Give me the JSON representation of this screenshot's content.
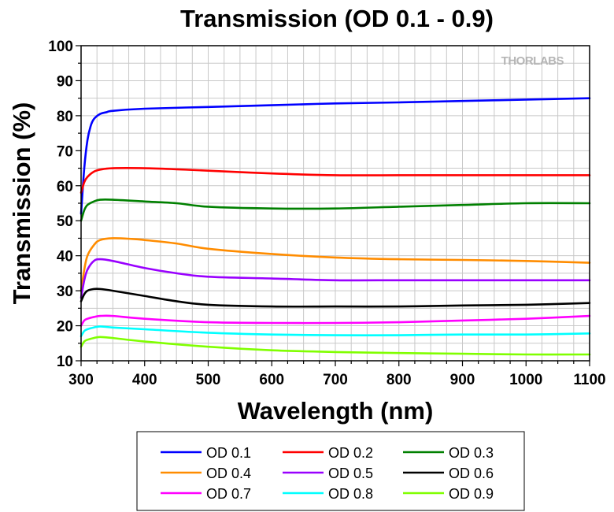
{
  "chart_data": {
    "type": "line",
    "title": "Transmission (OD 0.1 - 0.9)",
    "xlabel": "Wavelength (nm)",
    "ylabel": "Transmission (%)",
    "xlim": [
      300,
      1100
    ],
    "ylim": [
      10,
      100
    ],
    "x_ticks": [
      300,
      400,
      500,
      600,
      700,
      800,
      900,
      1000,
      1100
    ],
    "y_ticks": [
      10,
      20,
      30,
      40,
      50,
      60,
      70,
      80,
      90,
      100
    ],
    "grid": true,
    "legend_position": "bottom",
    "watermark": "THORLABS",
    "series": [
      {
        "name": "OD 0.1",
        "color": "#0000ff",
        "x": [
          300,
          305,
          310,
          315,
          320,
          330,
          340,
          350,
          400,
          500,
          600,
          700,
          800,
          900,
          1000,
          1100
        ],
        "y": [
          52,
          65,
          73,
          77,
          79,
          80.5,
          81,
          81.4,
          82,
          82.5,
          83,
          83.5,
          83.8,
          84.2,
          84.6,
          85
        ]
      },
      {
        "name": "OD 0.2",
        "color": "#ff0000",
        "x": [
          300,
          305,
          310,
          320,
          330,
          350,
          400,
          450,
          500,
          600,
          700,
          800,
          900,
          1000,
          1100
        ],
        "y": [
          58,
          61,
          62.5,
          64,
          64.6,
          65,
          65,
          64.7,
          64.3,
          63.5,
          63,
          63,
          63,
          63,
          63
        ]
      },
      {
        "name": "OD 0.3",
        "color": "#008000",
        "x": [
          300,
          305,
          310,
          320,
          330,
          350,
          400,
          450,
          500,
          600,
          700,
          800,
          900,
          1000,
          1100
        ],
        "y": [
          50,
          53,
          54.5,
          55.5,
          56,
          56,
          55.5,
          55,
          54,
          53.5,
          53.5,
          54,
          54.5,
          55,
          55
        ]
      },
      {
        "name": "OD 0.4",
        "color": "#ff8c00",
        "x": [
          300,
          305,
          310,
          320,
          330,
          350,
          380,
          400,
          450,
          500,
          600,
          700,
          800,
          900,
          1000,
          1100
        ],
        "y": [
          30,
          36,
          40,
          43,
          44.5,
          45,
          44.8,
          44.5,
          43.5,
          42,
          40.5,
          39.5,
          39,
          38.8,
          38.5,
          38
        ]
      },
      {
        "name": "OD 0.5",
        "color": "#9900ff",
        "x": [
          300,
          305,
          310,
          320,
          330,
          350,
          400,
          450,
          500,
          600,
          700,
          800,
          900,
          1000,
          1100
        ],
        "y": [
          28,
          33,
          36,
          38.5,
          39,
          38.5,
          36.5,
          35,
          34,
          33.5,
          33,
          33,
          33,
          33,
          33
        ]
      },
      {
        "name": "OD 0.6",
        "color": "#000000",
        "x": [
          300,
          305,
          310,
          320,
          330,
          350,
          400,
          450,
          500,
          600,
          700,
          800,
          900,
          1000,
          1100
        ],
        "y": [
          27,
          29,
          30,
          30.5,
          30.5,
          30,
          28.5,
          27,
          26,
          25.5,
          25.5,
          25.5,
          25.8,
          26,
          26.5
        ]
      },
      {
        "name": "OD 0.7",
        "color": "#ff00ff",
        "x": [
          300,
          305,
          310,
          320,
          330,
          350,
          400,
          500,
          600,
          700,
          800,
          900,
          1000,
          1100
        ],
        "y": [
          20,
          21.5,
          22,
          22.5,
          22.8,
          22.8,
          22,
          21,
          20.8,
          20.8,
          21,
          21.5,
          22,
          22.8
        ]
      },
      {
        "name": "OD 0.8",
        "color": "#00ffff",
        "x": [
          300,
          305,
          310,
          320,
          330,
          350,
          400,
          500,
          600,
          700,
          800,
          900,
          1000,
          1100
        ],
        "y": [
          17,
          18.5,
          19,
          19.5,
          19.8,
          19.5,
          19,
          18,
          17.5,
          17.3,
          17.3,
          17.5,
          17.5,
          17.8
        ]
      },
      {
        "name": "OD 0.9",
        "color": "#80ff00",
        "x": [
          300,
          305,
          310,
          320,
          330,
          350,
          400,
          500,
          600,
          700,
          800,
          900,
          1000,
          1100
        ],
        "y": [
          14,
          15.5,
          16,
          16.5,
          16.8,
          16.5,
          15.5,
          14,
          13,
          12.5,
          12.2,
          12,
          11.8,
          11.8
        ]
      }
    ]
  }
}
